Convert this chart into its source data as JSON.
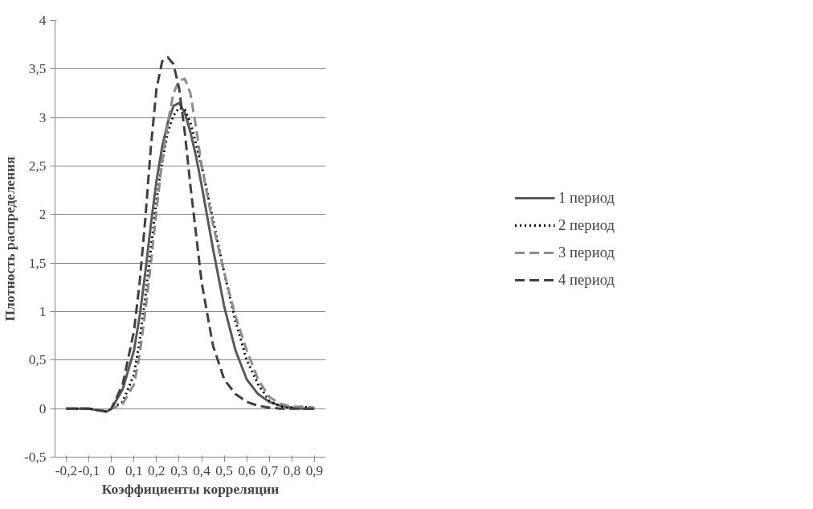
{
  "chart_data": {
    "type": "line",
    "xlabel": "Коэффициенты корреляции",
    "ylabel": "Плотность распределения",
    "xlim": [
      -0.25,
      0.95
    ],
    "xticks": [
      {
        "value": -0.2,
        "label": "-0,2"
      },
      {
        "value": -0.1,
        "label": "-0,1"
      },
      {
        "value": 0,
        "label": "0"
      },
      {
        "value": 0.1,
        "label": "0,1"
      },
      {
        "value": 0.2,
        "label": "0,2"
      },
      {
        "value": 0.3,
        "label": "0,3"
      },
      {
        "value": 0.4,
        "label": "0,4"
      },
      {
        "value": 0.5,
        "label": "0,5"
      },
      {
        "value": 0.6,
        "label": "0,6"
      },
      {
        "value": 0.7,
        "label": "0,7"
      },
      {
        "value": 0.8,
        "label": "0,8"
      },
      {
        "value": 0.9,
        "label": "0,9"
      }
    ],
    "ylim": [
      -0.5,
      4
    ],
    "yticks": [
      {
        "value": -0.5,
        "label": "-0,5"
      },
      0,
      {
        "value": 0.5,
        "label": "0,5"
      },
      1,
      {
        "value": 1.5,
        "label": "1,5"
      },
      2,
      {
        "value": 2.5,
        "label": "2,5"
      },
      3,
      {
        "value": 3.5,
        "label": "3,5"
      },
      4
    ],
    "grid": "y",
    "legend": "right",
    "marker": "none",
    "series": [
      {
        "name": "1 период",
        "color": "#595959",
        "line_style": "solid",
        "x": [
          -0.2,
          -0.15,
          -0.1,
          -0.05,
          -0.02,
          0,
          0.05,
          0.1,
          0.125,
          0.15,
          0.175,
          0.2,
          0.225,
          0.25,
          0.275,
          0.3,
          0.325,
          0.35,
          0.375,
          0.4,
          0.45,
          0.5,
          0.55,
          0.6,
          0.65,
          0.7,
          0.75,
          0.8,
          0.85,
          0.9
        ],
        "values": [
          0,
          0,
          0,
          -0.02,
          -0.03,
          0,
          0.2,
          0.6,
          0.95,
          1.4,
          1.9,
          2.35,
          2.7,
          2.95,
          3.12,
          3.15,
          3.05,
          2.85,
          2.6,
          2.3,
          1.65,
          1.05,
          0.6,
          0.3,
          0.15,
          0.07,
          0.03,
          0.01,
          0,
          0
        ]
      },
      {
        "name": "2 период",
        "color": "#000000",
        "line_style": "dotted",
        "x": [
          -0.2,
          -0.15,
          -0.1,
          -0.05,
          -0.02,
          0,
          0.05,
          0.1,
          0.125,
          0.15,
          0.175,
          0.2,
          0.225,
          0.25,
          0.275,
          0.3,
          0.325,
          0.35,
          0.4,
          0.45,
          0.5,
          0.55,
          0.6,
          0.65,
          0.7,
          0.75,
          0.8,
          0.85,
          0.9
        ],
        "values": [
          0,
          0,
          0,
          -0.02,
          -0.03,
          0,
          0.07,
          0.35,
          0.7,
          1.15,
          1.65,
          2.15,
          2.55,
          2.85,
          3.02,
          3.1,
          3.08,
          2.95,
          2.5,
          1.95,
          1.4,
          0.9,
          0.5,
          0.25,
          0.08,
          0.02,
          0.01,
          0.02,
          0
        ]
      },
      {
        "name": "3 период",
        "color": "#8c8c8c",
        "line_style": "dashed",
        "x": [
          -0.2,
          -0.15,
          -0.1,
          -0.05,
          -0.02,
          0,
          0.05,
          0.1,
          0.125,
          0.15,
          0.175,
          0.2,
          0.225,
          0.25,
          0.275,
          0.3,
          0.325,
          0.35,
          0.375,
          0.4,
          0.45,
          0.5,
          0.55,
          0.6,
          0.65,
          0.7,
          0.75,
          0.8,
          0.85,
          0.9
        ],
        "values": [
          0,
          0,
          0,
          -0.02,
          -0.03,
          0,
          0.05,
          0.25,
          0.55,
          1.0,
          1.5,
          2.05,
          2.55,
          2.95,
          3.25,
          3.38,
          3.4,
          3.25,
          2.9,
          2.5,
          1.9,
          1.4,
          0.95,
          0.6,
          0.3,
          0.12,
          0.05,
          0.02,
          0.02,
          0.01
        ]
      },
      {
        "name": "4 период",
        "color": "#404040",
        "line_style": "dashed",
        "x": [
          -0.2,
          -0.15,
          -0.1,
          -0.05,
          -0.02,
          0,
          0.05,
          0.1,
          0.125,
          0.15,
          0.175,
          0.2,
          0.225,
          0.25,
          0.275,
          0.3,
          0.325,
          0.35,
          0.375,
          0.4,
          0.45,
          0.5,
          0.55,
          0.6,
          0.65,
          0.7,
          0.75,
          0.8,
          0.85,
          0.9
        ],
        "values": [
          0,
          0,
          0,
          -0.02,
          -0.03,
          0,
          0.25,
          0.8,
          1.3,
          1.95,
          2.7,
          3.3,
          3.58,
          3.62,
          3.55,
          3.3,
          2.85,
          2.3,
          1.8,
          1.3,
          0.65,
          0.3,
          0.15,
          0.07,
          0.03,
          0.01,
          0,
          0,
          0,
          0
        ]
      }
    ]
  }
}
